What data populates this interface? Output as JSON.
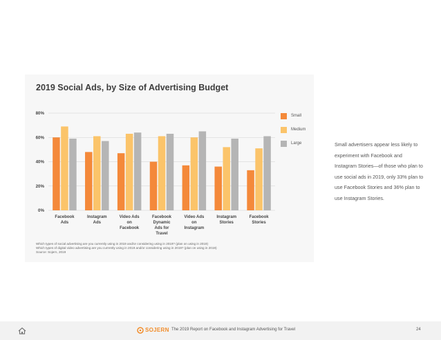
{
  "card": {
    "title": "2019 Social Ads, by Size of Advertising Budget",
    "notes": [
      "Which types of social advertising are you currently using in 2019 and/or considering using in 2019? (plan on using in 2019)",
      "Which types of digital video advertising are you currently using in 2019 and/or considering using in 2019? (plan on using in 2019)",
      "Source: Sojern, 2019"
    ]
  },
  "chart_data": {
    "type": "bar",
    "categories": [
      [
        "Facebook",
        "Ads"
      ],
      [
        "Instagram",
        "Ads"
      ],
      [
        "Video Ads",
        "on",
        "Facebook"
      ],
      [
        "Facebook",
        "Dynamic",
        "Ads for",
        "Travel"
      ],
      [
        "Video Ads",
        "on",
        "Instagram"
      ],
      [
        "Instagram",
        "Stories"
      ],
      [
        "Facebook",
        "Stories"
      ]
    ],
    "series": [
      {
        "name": "Small",
        "color": "#f4893a",
        "values": [
          60,
          48,
          47,
          40,
          37,
          36,
          33
        ]
      },
      {
        "name": "Medium",
        "color": "#fbc46a",
        "values": [
          69,
          61,
          63,
          61,
          60,
          52,
          51
        ]
      },
      {
        "name": "Large",
        "color": "#b5b5b5",
        "values": [
          59,
          57,
          64,
          63,
          65,
          59,
          61
        ]
      }
    ],
    "ylim": [
      0,
      80
    ],
    "yticks": [
      "0%",
      "20%",
      "40%",
      "60%",
      "80%"
    ],
    "grid": true,
    "legend": "right"
  },
  "side_text": "Small advertisers appear less likely to experiment with Facebook and Instagram Stories—of those who plan to use social ads in 2019, only 33% plan to use Facebook Stories and 36% plan to use Instagram Stories.",
  "footer": {
    "home_icon": "home-icon",
    "brand_icon": "sojern-logo-icon",
    "brand": "SOJERN",
    "report_title": "The 2019 Report on Facebook and Instagram Advertising for Travel",
    "page_number": "24"
  }
}
